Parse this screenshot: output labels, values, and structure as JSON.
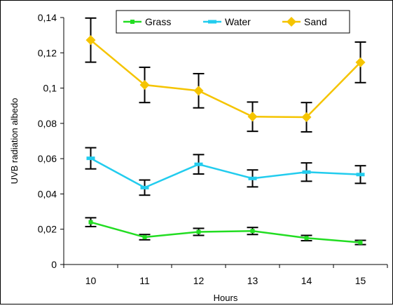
{
  "chart_data": {
    "type": "line",
    "title": "",
    "xlabel": "Hours",
    "ylabel": "UVB radiation albedo",
    "categories": [
      "10",
      "11",
      "12",
      "13",
      "14",
      "15"
    ],
    "ylim": [
      0,
      0.14
    ],
    "yticks": [
      0,
      0.02,
      0.04,
      0.06,
      0.08,
      0.1,
      0.12,
      0.14
    ],
    "ytick_labels": [
      "0",
      "0,02",
      "0,04",
      "0,06",
      "0,08",
      "0,1",
      "0,12",
      "0,14"
    ],
    "grid": false,
    "legend_position": "top",
    "series": [
      {
        "name": "Grass",
        "color": "#22dd22",
        "marker": "square",
        "values": [
          0.024,
          0.0155,
          0.0185,
          0.019,
          0.015,
          0.0125
        ],
        "errors": [
          0.0025,
          0.0015,
          0.002,
          0.002,
          0.0015,
          0.0012
        ]
      },
      {
        "name": "Water",
        "color": "#22ccee",
        "marker": "dash",
        "values": [
          0.0602,
          0.0436,
          0.0568,
          0.0488,
          0.0524,
          0.051
        ],
        "errors": [
          0.006,
          0.0043,
          0.0055,
          0.0048,
          0.0052,
          0.005
        ]
      },
      {
        "name": "Sand",
        "color": "#f5c400",
        "marker": "diamond",
        "values": [
          0.1272,
          0.1018,
          0.0985,
          0.0838,
          0.0835,
          0.1146
        ],
        "errors": [
          0.0125,
          0.01,
          0.0097,
          0.0083,
          0.0083,
          0.0115
        ]
      }
    ]
  }
}
